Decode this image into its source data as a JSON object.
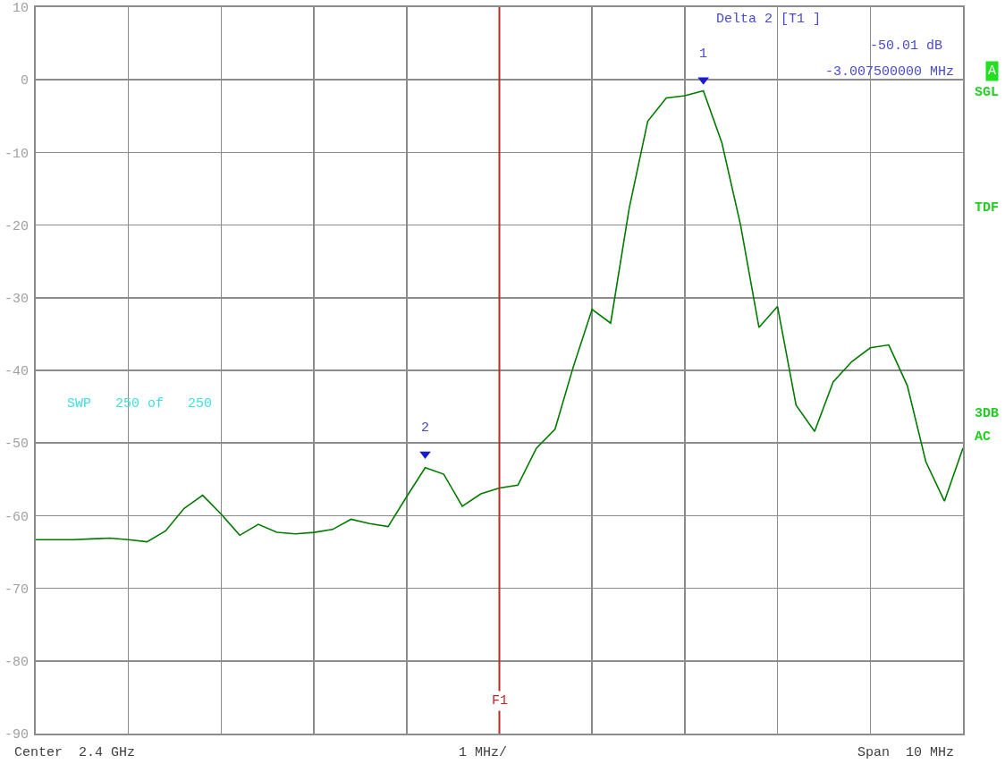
{
  "chart_data": {
    "type": "line",
    "ylim": [
      -90,
      10
    ],
    "categories": [
      null,
      null,
      null,
      null,
      null,
      null,
      null,
      null,
      null,
      null,
      null,
      null,
      null,
      null,
      null,
      null,
      null,
      null,
      null,
      null,
      null,
      null,
      null,
      null,
      null,
      null,
      null,
      null,
      null,
      null,
      null,
      null,
      null,
      null,
      null,
      null,
      null,
      null,
      null,
      null,
      null,
      null,
      null,
      null,
      null,
      null,
      null,
      null,
      null,
      null,
      null
    ],
    "yticks": [
      10,
      0,
      -10,
      -20,
      -30,
      -40,
      -50,
      -60,
      -70,
      -80,
      -90
    ],
    "grid": true,
    "tick_labels": "y",
    "series": [
      {
        "color": "#007a00",
        "values": [
          -63.3,
          -63.3,
          -63.3,
          -63.2,
          -63.1,
          -63.3,
          -63.6,
          -62.1,
          -59.0,
          -57.2,
          -59.8,
          -62.7,
          -61.2,
          -62.3,
          -62.5,
          -62.3,
          -61.9,
          -60.5,
          -61.1,
          -61.5,
          -57.4,
          -53.4,
          -54.3,
          -58.7,
          -57.0,
          -56.2,
          -55.8,
          -50.7,
          -48.1,
          -39.4,
          -31.6,
          -33.5,
          -17.7,
          -5.7,
          -2.5,
          -2.2,
          -1.5,
          -8.7,
          -19.9,
          -34.1,
          -31.2,
          -44.8,
          -48.4,
          -41.6,
          -38.8,
          -36.9,
          -36.5,
          -42.1,
          -52.6,
          -58.0,
          -50.7
        ]
      },
      {
        "type": "scatter",
        "color": "#1a1ad0",
        "marker": "triangle",
        "values": [
          null,
          null,
          null,
          null,
          null,
          null,
          null,
          null,
          null,
          null,
          null,
          null,
          null,
          null,
          null,
          null,
          null,
          null,
          null,
          null,
          null,
          -51.5,
          null,
          null,
          null,
          null,
          null,
          null,
          null,
          null,
          null,
          null,
          null,
          null,
          null,
          null,
          0,
          null,
          null,
          null,
          null,
          null,
          null,
          null,
          null,
          null,
          null,
          null,
          null,
          null,
          null
        ]
      }
    ],
    "annotations": [
      "Delta 2 [T1 ]",
      "-50.01 dB",
      "-3.007500000 MHz",
      "SWP   250 of   250",
      "A",
      "SGL",
      "TDF",
      "3DB",
      "AC",
      "Center  2.4 GHz",
      "1 MHz/",
      "Span  10 MHz",
      "1",
      "2",
      "F1"
    ]
  }
}
